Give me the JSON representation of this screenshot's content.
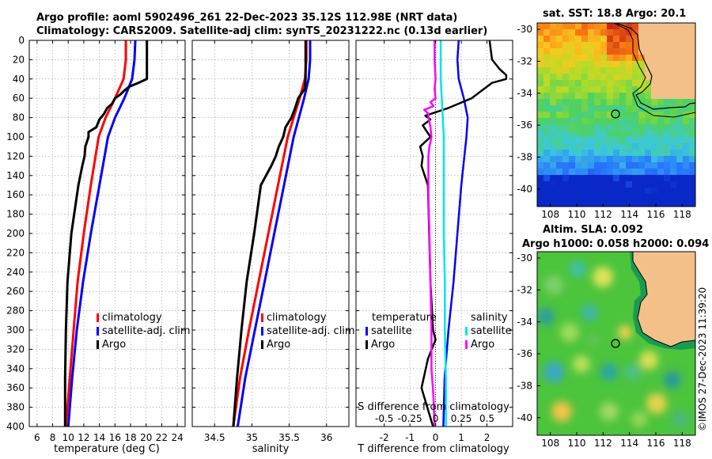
{
  "header": {
    "line1": "Argo profile: aoml 5902496_261 22-Dec-2023 35.12S 112.98E (NRT data)",
    "line2": "Climatology: CARS2009. Satellite-adj clim: synTS_20231222.nc (0.13d earlier)"
  },
  "colors": {
    "climatology": "#ff0000",
    "satellite": "#0000ff",
    "argo": "#000000",
    "sal_diff": "#00e5ee",
    "sal_argo_diff": "#ff00ff"
  },
  "chart_data": [
    {
      "type": "line",
      "id": "temperature",
      "xlabel": "temperature (deg C)",
      "ylabel": "",
      "xlim": [
        5,
        25
      ],
      "ylim": [
        400,
        0
      ],
      "xticks": [
        6,
        8,
        10,
        12,
        14,
        16,
        18,
        20,
        22,
        24
      ],
      "yticks": [
        0,
        20,
        40,
        60,
        80,
        100,
        120,
        140,
        160,
        180,
        200,
        220,
        240,
        260,
        280,
        300,
        320,
        340,
        360,
        380,
        400
      ],
      "legend": [
        "climatology",
        "satellite-adj. clim",
        "Argo"
      ],
      "series": [
        {
          "name": "climatology",
          "depth": [
            0,
            20,
            40,
            60,
            80,
            100,
            150,
            200,
            250,
            300,
            350,
            400
          ],
          "values": [
            17.4,
            17.4,
            17.1,
            16.0,
            14.8,
            13.9,
            12.9,
            12.0,
            11.2,
            10.7,
            10.2,
            9.7
          ]
        },
        {
          "name": "satellite-adj. clim",
          "depth": [
            0,
            20,
            40,
            60,
            80,
            100,
            150,
            200,
            250,
            300,
            350,
            400
          ],
          "values": [
            18.6,
            18.5,
            18.2,
            17.2,
            16.0,
            15.1,
            14.0,
            12.9,
            11.9,
            11.1,
            10.5,
            10.0
          ]
        },
        {
          "name": "Argo",
          "depth": [
            0,
            20,
            40,
            44,
            48,
            52,
            56,
            60,
            66,
            70,
            76,
            82,
            90,
            95,
            100,
            110,
            120,
            130,
            150,
            200,
            250,
            300,
            350,
            400
          ],
          "values": [
            20.1,
            20.1,
            20.1,
            19.0,
            17.8,
            17.2,
            16.7,
            16.0,
            15.6,
            15.0,
            14.6,
            14.0,
            13.6,
            12.6,
            12.6,
            12.2,
            12.1,
            11.8,
            11.3,
            10.4,
            9.9,
            9.7,
            9.6,
            9.6
          ]
        }
      ]
    },
    {
      "type": "line",
      "id": "salinity",
      "xlabel": "salinity",
      "xlim": [
        34.2,
        36.3
      ],
      "ylim": [
        400,
        0
      ],
      "xticks": [
        34.5,
        35,
        35.5,
        36
      ],
      "yticks": [
        0,
        20,
        40,
        60,
        80,
        100,
        120,
        140,
        160,
        180,
        200,
        220,
        240,
        260,
        280,
        300,
        320,
        340,
        360,
        380,
        400
      ],
      "legend": [
        "climatology",
        "satellite-adj. clim",
        "Argo"
      ],
      "series": [
        {
          "name": "climatology",
          "depth": [
            0,
            20,
            40,
            60,
            80,
            100,
            150,
            200,
            250,
            300,
            350,
            400
          ],
          "values": [
            35.73,
            35.73,
            35.71,
            35.64,
            35.56,
            35.48,
            35.35,
            35.22,
            35.09,
            34.96,
            34.84,
            34.75
          ]
        },
        {
          "name": "satellite-adj. clim",
          "depth": [
            0,
            20,
            40,
            60,
            80,
            100,
            150,
            200,
            250,
            300,
            350,
            400
          ],
          "values": [
            35.78,
            35.78,
            35.76,
            35.7,
            35.63,
            35.56,
            35.43,
            35.3,
            35.17,
            35.04,
            34.91,
            34.81
          ]
        },
        {
          "name": "Argo",
          "depth": [
            0,
            20,
            40,
            50,
            60,
            70,
            80,
            90,
            100,
            110,
            120,
            130,
            150,
            200,
            250,
            300,
            350,
            400
          ],
          "values": [
            35.72,
            35.72,
            35.72,
            35.71,
            35.62,
            35.58,
            35.53,
            35.45,
            35.42,
            35.36,
            35.32,
            35.26,
            35.12,
            35.03,
            34.93,
            34.86,
            34.8,
            34.75
          ]
        }
      ]
    },
    {
      "type": "line",
      "id": "differences",
      "xlabel": "T difference from climatology",
      "xlabel_top": "S difference from climatology",
      "xlim": [
        -3.1,
        3.0
      ],
      "ylim": [
        400,
        0
      ],
      "xticks": [
        -2,
        -1,
        0,
        1,
        2
      ],
      "xticks_top": [
        "-0.5",
        "-0.25",
        "0",
        "0.25",
        "0.5"
      ],
      "legend_temperature_title": "temperature",
      "legend_salinity_title": "salinity",
      "legend_temperature": [
        "satellite",
        "Argo"
      ],
      "legend_salinity": [
        "satellite",
        "Argo"
      ],
      "series": [
        {
          "name": "T satellite",
          "depth": [
            0,
            20,
            40,
            60,
            80,
            100,
            150,
            200,
            250,
            300,
            350,
            400
          ],
          "values": [
            0.9,
            0.85,
            0.9,
            1.1,
            1.25,
            1.2,
            1.0,
            0.85,
            0.7,
            0.5,
            0.35,
            0.3
          ]
        },
        {
          "name": "T Argo",
          "depth": [
            0,
            20,
            30,
            36,
            40,
            44,
            52,
            60,
            70,
            78,
            82,
            88,
            100,
            110,
            120,
            130,
            150,
            200,
            250,
            300,
            310,
            330,
            360,
            400
          ],
          "values": [
            2.1,
            2.2,
            2.5,
            2.75,
            2.75,
            2.2,
            1.8,
            1.4,
            0.5,
            -0.4,
            -0.2,
            -0.5,
            -0.2,
            -0.6,
            -0.5,
            -0.55,
            -0.3,
            -0.25,
            -0.2,
            -0.1,
            0.0,
            -0.3,
            -0.55,
            -0.1
          ]
        },
        {
          "name": "S satellite",
          "depth": [
            0,
            20,
            40,
            60,
            80,
            100,
            150,
            200,
            250,
            300,
            350,
            400
          ],
          "values": [
            0.05,
            0.05,
            0.05,
            0.06,
            0.07,
            0.08,
            0.08,
            0.08,
            0.09,
            0.09,
            0.1,
            0.1
          ]
        },
        {
          "name": "S Argo",
          "depth": [
            0,
            20,
            40,
            50,
            60,
            64,
            68,
            72,
            76,
            80,
            84,
            90,
            100,
            110,
            120,
            140,
            160,
            200,
            250,
            300,
            340,
            370,
            400
          ],
          "values": [
            -0.01,
            -0.01,
            0.0,
            -0.01,
            0.0,
            -0.05,
            -0.02,
            -0.11,
            -0.07,
            -0.07,
            -0.06,
            -0.05,
            -0.04,
            -0.06,
            -0.07,
            -0.07,
            -0.07,
            -0.06,
            -0.05,
            -0.04,
            -0.04,
            -0.02,
            -0.01
          ]
        }
      ]
    }
  ],
  "maps": {
    "sst": {
      "title": "sat. SST: 18.8 Argo: 20.1",
      "lon_ticks": [
        "108",
        "110",
        "112",
        "114",
        "116",
        "118"
      ],
      "lat_ticks": [
        "-30",
        "-32",
        "-34",
        "-36",
        "-38",
        "-40"
      ]
    },
    "sla": {
      "title1": "Altim. SLA: 0.092",
      "title2": "Argo h1000: 0.058 h2000: 0.094",
      "lon_ticks": [
        "108",
        "110",
        "112",
        "114",
        "116",
        "118"
      ],
      "lat_ticks": [
        "-30",
        "-32",
        "-34",
        "-36",
        "-38",
        "-40"
      ]
    }
  },
  "credit": "©IMOS 27-Dec-2023 11:39:20"
}
